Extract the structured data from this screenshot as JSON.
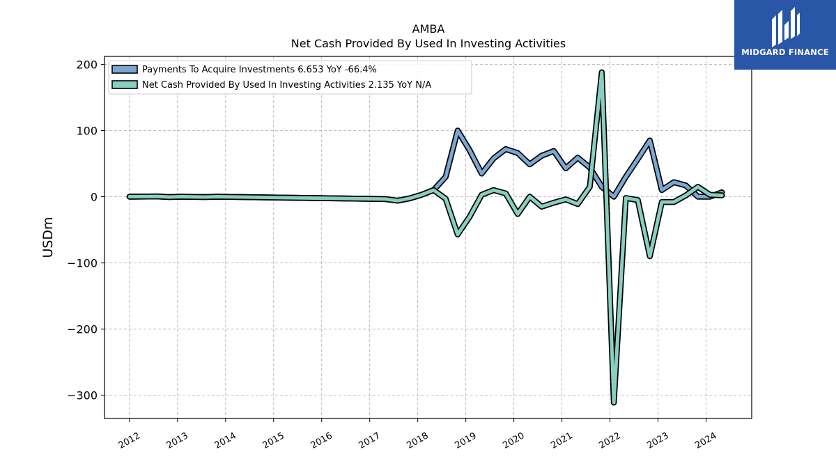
{
  "title": {
    "line1": "AMBA",
    "line2": "Net Cash Provided By Used In Investing Activities"
  },
  "logo": {
    "text": "MIDGARD FINANCE",
    "background": "#2a56a8",
    "icon": "midgard-logo-icon"
  },
  "chart_data": {
    "type": "line",
    "ylabel": "USDm",
    "xlabel": "",
    "ylim": [
      -335,
      212
    ],
    "xlim": [
      2011.48,
      2024.95
    ],
    "yticks": [
      200,
      100,
      0,
      -100,
      -200,
      -300
    ],
    "ytick_labels": [
      "200",
      "100",
      "0",
      "−100",
      "−200",
      "−300"
    ],
    "xticks": [
      2012,
      2013,
      2014,
      2015,
      2016,
      2017,
      2018,
      2019,
      2020,
      2021,
      2022,
      2023,
      2024
    ],
    "xtick_labels": [
      "2012",
      "2013",
      "2014",
      "2015",
      "2016",
      "2017",
      "2018",
      "2019",
      "2020",
      "2021",
      "2022",
      "2023",
      "2024"
    ],
    "grid": true,
    "legend_position": "top-left",
    "series": [
      {
        "name": "Payments To Acquire Investments",
        "legend": "Payments To Acquire Investments  6.653 YoY -66.4%",
        "color": "#7ba7d1",
        "points": [
          [
            2012.0,
            0.0
          ],
          [
            2012.58,
            0.5
          ],
          [
            2012.83,
            -0.5
          ],
          [
            2013.08,
            0.0
          ],
          [
            2013.58,
            -0.5
          ],
          [
            2013.83,
            0.0
          ],
          [
            2017.33,
            -3.5
          ],
          [
            2017.58,
            -6.0
          ],
          [
            2017.83,
            -2.5
          ],
          [
            2018.08,
            3.0
          ],
          [
            2018.33,
            10.0
          ],
          [
            2018.58,
            30.0
          ],
          [
            2018.83,
            100.0
          ],
          [
            2019.08,
            70.0
          ],
          [
            2019.33,
            35.0
          ],
          [
            2019.58,
            58.0
          ],
          [
            2019.83,
            72.0
          ],
          [
            2020.08,
            66.0
          ],
          [
            2020.33,
            49.0
          ],
          [
            2020.58,
            62.0
          ],
          [
            2020.83,
            69.0
          ],
          [
            2021.08,
            43.0
          ],
          [
            2021.33,
            59.0
          ],
          [
            2021.58,
            44.0
          ],
          [
            2021.83,
            15.0
          ],
          [
            2022.08,
            0.0
          ],
          [
            2022.33,
            30.0
          ],
          [
            2022.58,
            57.0
          ],
          [
            2022.83,
            85.0
          ],
          [
            2023.08,
            10.0
          ],
          [
            2023.33,
            22.0
          ],
          [
            2023.58,
            17.0
          ],
          [
            2023.83,
            0.0
          ],
          [
            2024.08,
            0.0
          ],
          [
            2024.33,
            6.65
          ]
        ]
      },
      {
        "name": "Net Cash Provided By Used In Investing Activities",
        "legend": "Net Cash Provided By Used In Investing Activities  2.135 YoY N/A",
        "color": "#88cfc0",
        "points": [
          [
            2012.0,
            0.0
          ],
          [
            2012.58,
            0.5
          ],
          [
            2012.83,
            -0.5
          ],
          [
            2013.08,
            0.0
          ],
          [
            2013.58,
            -0.5
          ],
          [
            2013.83,
            0.0
          ],
          [
            2017.33,
            -3.5
          ],
          [
            2017.58,
            -6.0
          ],
          [
            2017.83,
            -2.5
          ],
          [
            2018.08,
            3.0
          ],
          [
            2018.33,
            10.0
          ],
          [
            2018.58,
            -3.0
          ],
          [
            2018.83,
            -57.0
          ],
          [
            2019.08,
            -30.0
          ],
          [
            2019.33,
            3.0
          ],
          [
            2019.58,
            10.0
          ],
          [
            2019.83,
            5.0
          ],
          [
            2020.08,
            -26.0
          ],
          [
            2020.33,
            0.0
          ],
          [
            2020.58,
            -15.0
          ],
          [
            2020.83,
            -9.0
          ],
          [
            2021.08,
            -4.0
          ],
          [
            2021.33,
            -11.0
          ],
          [
            2021.58,
            15.0
          ],
          [
            2021.83,
            188.0
          ],
          [
            2022.08,
            -311.0
          ],
          [
            2022.33,
            -2.0
          ],
          [
            2022.58,
            -5.0
          ],
          [
            2022.83,
            -90.0
          ],
          [
            2023.08,
            -8.0
          ],
          [
            2023.33,
            -8.0
          ],
          [
            2023.58,
            2.0
          ],
          [
            2023.83,
            15.0
          ],
          [
            2024.08,
            3.0
          ],
          [
            2024.33,
            2.135
          ]
        ]
      }
    ]
  }
}
